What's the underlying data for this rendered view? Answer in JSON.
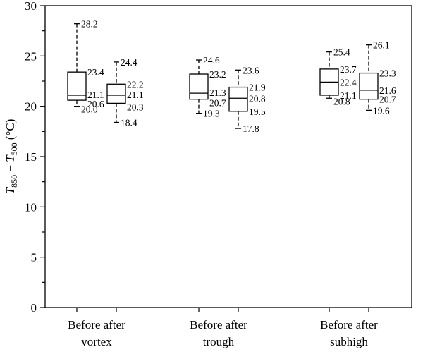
{
  "chart_data": {
    "type": "box",
    "ylabel": "T850 − T500 (°C)",
    "ylabel_parts": {
      "var": "T",
      "sub1": "850",
      "sep": " − ",
      "sub2": "500",
      "unit": " (°C)"
    },
    "ylim": [
      0,
      30
    ],
    "yticks": [
      0,
      5,
      10,
      15,
      20,
      25,
      30
    ],
    "grid": false,
    "groups": [
      {
        "label_line1": "Before after",
        "label_line2": "vortex",
        "boxes": [
          {
            "name": "Before",
            "max": 28.2,
            "q3": 23.4,
            "median": 21.1,
            "q1": 20.6,
            "min": 20.0
          },
          {
            "name": "after",
            "max": 24.4,
            "q3": 22.2,
            "median": 21.1,
            "q1": 20.3,
            "min": 18.4
          }
        ]
      },
      {
        "label_line1": "Before after",
        "label_line2": "trough",
        "boxes": [
          {
            "name": "Before",
            "max": 24.6,
            "q3": 23.2,
            "median": 21.3,
            "q1": 20.7,
            "min": 19.3
          },
          {
            "name": "after",
            "max": 23.6,
            "q3": 21.9,
            "median": 20.8,
            "q1": 19.5,
            "min": 17.8
          }
        ]
      },
      {
        "label_line1": "Before after",
        "label_line2": "subhigh",
        "boxes": [
          {
            "name": "Before",
            "max": 25.4,
            "q3": 23.7,
            "median": 22.4,
            "q1": 21.1,
            "min": 20.8
          },
          {
            "name": "after",
            "max": 26.1,
            "q3": 23.3,
            "median": 21.6,
            "q1": 20.7,
            "min": 19.6
          }
        ]
      }
    ]
  }
}
